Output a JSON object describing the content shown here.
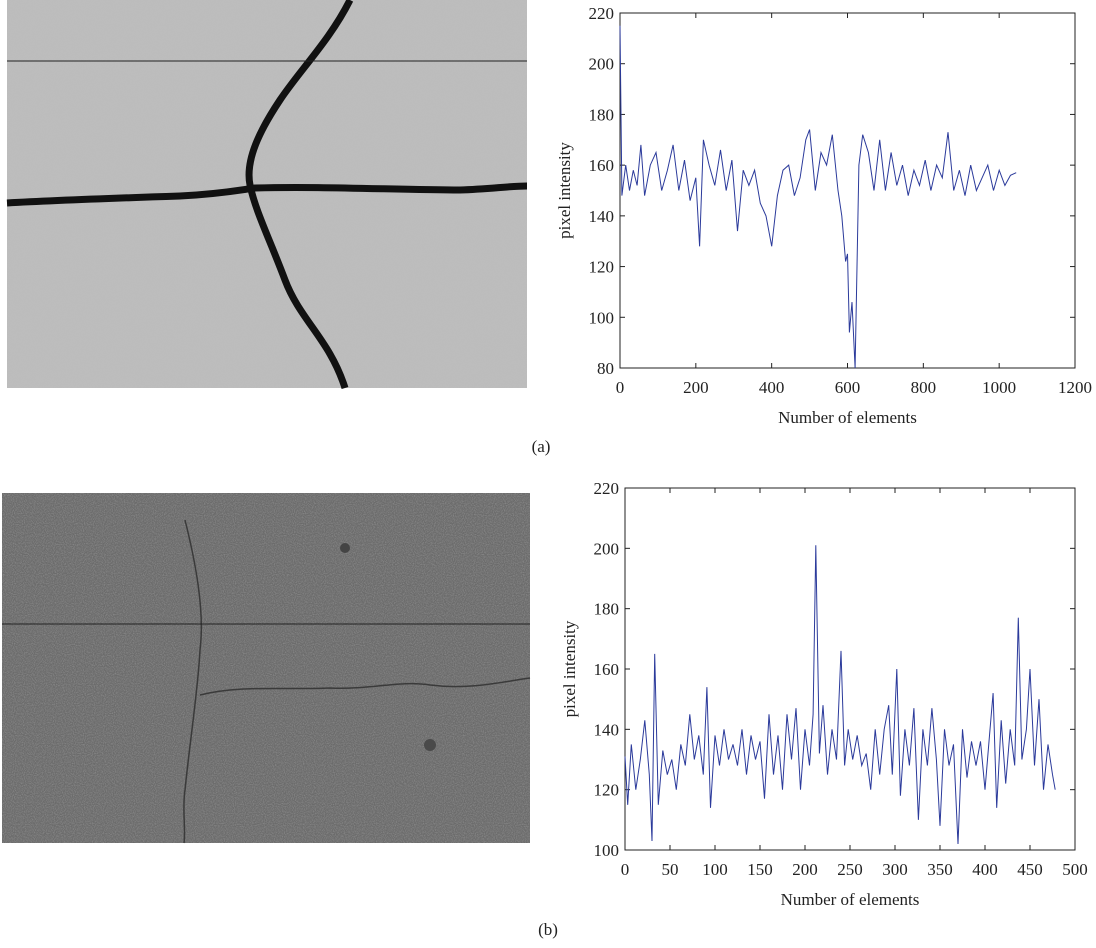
{
  "chart_data": [
    {
      "type": "line",
      "caption": "(a)",
      "x_label": "Number of elements",
      "y_label": "pixel intensity",
      "color": "#2b3a9b",
      "xlim": [
        0,
        1200
      ],
      "ylim": [
        80,
        220
      ],
      "xticks": [
        0,
        200,
        400,
        600,
        800,
        1000,
        1200
      ],
      "yticks": [
        80,
        100,
        120,
        140,
        160,
        180,
        200,
        220
      ],
      "x": [
        0,
        5,
        15,
        25,
        35,
        45,
        55,
        65,
        80,
        95,
        110,
        125,
        140,
        155,
        170,
        185,
        200,
        210,
        220,
        235,
        250,
        265,
        280,
        295,
        310,
        325,
        340,
        355,
        370,
        385,
        400,
        415,
        430,
        445,
        460,
        475,
        490,
        500,
        515,
        530,
        545,
        560,
        575,
        585,
        595,
        600,
        605,
        612,
        620,
        630,
        640,
        655,
        670,
        685,
        700,
        715,
        730,
        745,
        760,
        775,
        790,
        805,
        820,
        835,
        850,
        865,
        880,
        895,
        910,
        925,
        940,
        955,
        970,
        985,
        1000,
        1015,
        1030,
        1045
      ],
      "values": [
        215,
        148,
        160,
        150,
        158,
        152,
        168,
        148,
        160,
        165,
        150,
        158,
        168,
        150,
        162,
        146,
        155,
        128,
        170,
        160,
        152,
        166,
        150,
        162,
        134,
        158,
        152,
        158,
        145,
        140,
        128,
        148,
        158,
        160,
        148,
        155,
        170,
        174,
        150,
        165,
        160,
        172,
        150,
        140,
        122,
        125,
        94,
        106,
        80,
        160,
        172,
        165,
        150,
        170,
        150,
        165,
        152,
        160,
        148,
        158,
        152,
        162,
        150,
        160,
        155,
        173,
        150,
        158,
        148,
        160,
        150,
        155,
        160,
        150,
        158,
        152,
        156,
        157
      ]
    },
    {
      "type": "line",
      "caption": "(b)",
      "x_label": "Number of elements",
      "y_label": "pixel intensity",
      "color": "#2b3a9b",
      "xlim": [
        0,
        500
      ],
      "ylim": [
        100,
        220
      ],
      "xticks": [
        0,
        50,
        100,
        150,
        200,
        250,
        300,
        350,
        400,
        450,
        500
      ],
      "yticks": [
        100,
        120,
        140,
        160,
        180,
        200,
        220
      ],
      "x": [
        0,
        3,
        7,
        12,
        17,
        22,
        27,
        30,
        33,
        37,
        42,
        47,
        52,
        57,
        62,
        67,
        72,
        77,
        82,
        87,
        91,
        95,
        100,
        105,
        110,
        115,
        120,
        125,
        130,
        135,
        140,
        145,
        150,
        155,
        160,
        165,
        170,
        175,
        180,
        185,
        190,
        195,
        200,
        205,
        209,
        212,
        216,
        220,
        225,
        230,
        235,
        240,
        244,
        248,
        253,
        258,
        263,
        268,
        273,
        278,
        283,
        288,
        293,
        297,
        302,
        306,
        311,
        316,
        321,
        326,
        331,
        336,
        341,
        346,
        350,
        355,
        360,
        365,
        370,
        375,
        380,
        385,
        390,
        395,
        400,
        405,
        409,
        413,
        418,
        423,
        428,
        433,
        437,
        441,
        446,
        450,
        455,
        460,
        465,
        470,
        475,
        478
      ],
      "values": [
        131,
        115,
        135,
        120,
        130,
        143,
        125,
        103,
        165,
        115,
        133,
        125,
        130,
        120,
        135,
        128,
        145,
        130,
        138,
        125,
        154,
        114,
        138,
        128,
        140,
        130,
        135,
        128,
        140,
        125,
        138,
        130,
        136,
        117,
        145,
        125,
        138,
        120,
        145,
        130,
        147,
        120,
        140,
        128,
        145,
        201,
        132,
        148,
        125,
        140,
        130,
        166,
        128,
        140,
        130,
        138,
        128,
        132,
        120,
        140,
        125,
        140,
        148,
        125,
        160,
        118,
        140,
        128,
        147,
        110,
        140,
        128,
        147,
        130,
        108,
        140,
        128,
        135,
        102,
        140,
        124,
        136,
        128,
        136,
        120,
        138,
        152,
        114,
        143,
        122,
        140,
        128,
        177,
        130,
        140,
        160,
        128,
        150,
        120,
        135,
        125,
        120
      ]
    }
  ]
}
